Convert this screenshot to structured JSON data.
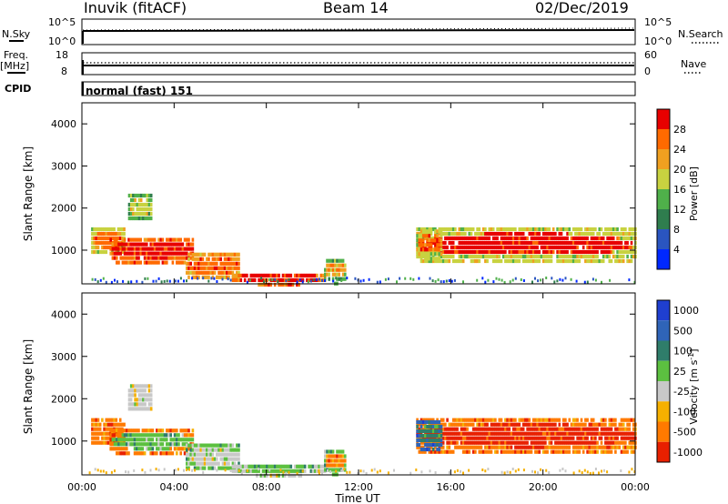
{
  "header": {
    "station": "Inuvik (fitACF)",
    "beam": "Beam 14",
    "date": "02/Dec/2019"
  },
  "strips": {
    "nsky_label": "N.Sky",
    "nsearch_label": "N.Search",
    "freq_label": "Freq.",
    "freq_unit": "[MHz]",
    "nave_label": "Nave",
    "cpid_label": "CPID",
    "cpid_text": "normal (fast) 151",
    "noise_left_ticks": [
      "10^5",
      "10^0"
    ],
    "noise_right_ticks": [
      "10^5",
      "10^0"
    ],
    "freq_ticks": [
      "18",
      "8"
    ],
    "nave_ticks": [
      "60",
      "0"
    ]
  },
  "colors": {
    "power_scale": [
      "#0028ff",
      "#2a55c0",
      "#2f7d4e",
      "#4fb04a",
      "#c8d240",
      "#f0a020",
      "#ff6a00",
      "#e80000"
    ],
    "velocity_scale": [
      "#1f3fd0",
      "#2f64b8",
      "#2f7d6a",
      "#5cc040",
      "#c8c8c8",
      "#f6b000",
      "#ff7a00",
      "#e82000"
    ],
    "power_scale_order": "bottom-to-top",
    "velocity_scale_order": "top-to-bottom"
  },
  "chart_data": [
    {
      "type": "heatmap",
      "panel": "power",
      "title": "",
      "xlabel": "",
      "ylabel": "Slant Range [km]",
      "ylim": [
        200,
        4500
      ],
      "xlim": [
        "00:00",
        "24:00"
      ],
      "y_ticks": [
        "1000",
        "2000",
        "3000",
        "4000"
      ],
      "x_ticks": [
        "00:00",
        "04:00",
        "08:00",
        "12:00",
        "16:00",
        "20:00",
        "00:00"
      ],
      "colorbar_label": "Power [dB]",
      "colorbar_ticks": [
        "4",
        "8",
        "12",
        "16",
        "20",
        "24",
        "28"
      ],
      "grid": false,
      "echo_regions": [
        {
          "t0": 0.4,
          "t1": 1.8,
          "r0": 900,
          "r1": 1650,
          "level": 4,
          "core": 6
        },
        {
          "t0": 1.2,
          "t1": 4.8,
          "r0": 700,
          "r1": 1400,
          "level": 6,
          "core": 7
        },
        {
          "t0": 2.0,
          "t1": 3.0,
          "r0": 1700,
          "r1": 2450,
          "level": 3,
          "core": 4
        },
        {
          "t0": 4.5,
          "t1": 6.8,
          "r0": 300,
          "r1": 1050,
          "level": 5,
          "core": 6
        },
        {
          "t0": 6.5,
          "t1": 10.5,
          "r0": 220,
          "r1": 550,
          "level": 6,
          "core": 7
        },
        {
          "t0": 10.5,
          "t1": 11.4,
          "r0": 250,
          "r1": 900,
          "level": 3,
          "core": 5
        },
        {
          "t0": 14.5,
          "t1": 24.0,
          "r0": 700,
          "r1": 1650,
          "level": 4,
          "core": 7
        },
        {
          "t0": 14.5,
          "t1": 15.6,
          "r0": 800,
          "r1": 1600,
          "level": 4,
          "core": 6
        }
      ]
    },
    {
      "type": "heatmap",
      "panel": "velocity",
      "title": "",
      "xlabel": "Time UT",
      "ylabel": "Slant Range [km]",
      "ylim": [
        200,
        4500
      ],
      "xlim": [
        "00:00",
        "24:00"
      ],
      "y_ticks": [
        "1000",
        "2000",
        "3000",
        "4000"
      ],
      "x_ticks": [
        "00:00",
        "04:00",
        "08:00",
        "12:00",
        "16:00",
        "20:00",
        "00:00"
      ],
      "colorbar_label": "Velocity [m s^-1]",
      "colorbar_ticks": [
        "1000",
        "500",
        "100",
        "25",
        "-25",
        "-100",
        "-500",
        "-1000"
      ],
      "grid": false,
      "echo_regions": [
        {
          "t0": 0.4,
          "t1": 1.8,
          "r0": 900,
          "r1": 1650,
          "level": 6,
          "core": 6
        },
        {
          "t0": 1.2,
          "t1": 4.8,
          "r0": 700,
          "r1": 1400,
          "level": 6,
          "core": 3
        },
        {
          "t0": 2.0,
          "t1": 3.0,
          "r0": 1700,
          "r1": 2450,
          "level": 4,
          "core": 4
        },
        {
          "t0": 4.5,
          "t1": 6.8,
          "r0": 300,
          "r1": 1050,
          "level": 3,
          "core": 4
        },
        {
          "t0": 6.5,
          "t1": 10.5,
          "r0": 220,
          "r1": 550,
          "level": 4,
          "core": 3
        },
        {
          "t0": 10.5,
          "t1": 11.4,
          "r0": 250,
          "r1": 900,
          "level": 3,
          "core": 6
        },
        {
          "t0": 14.5,
          "t1": 24.0,
          "r0": 700,
          "r1": 1650,
          "level": 6,
          "core": 7
        },
        {
          "t0": 14.5,
          "t1": 15.6,
          "r0": 800,
          "r1": 1600,
          "level": 1,
          "core": 2
        }
      ]
    }
  ]
}
